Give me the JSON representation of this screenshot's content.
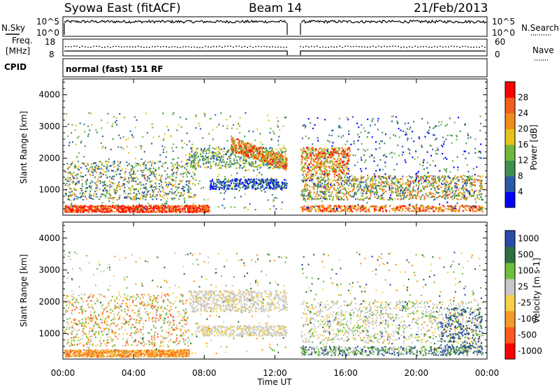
{
  "header": {
    "station": "Syowa East (fitACF)",
    "beam": "Beam 14",
    "date": "21/Feb/2013"
  },
  "top_panel": {
    "left_label": "N.Sky",
    "right_label": "N.Search",
    "scale_top": "10^5",
    "scale_bottom": "10^0"
  },
  "freq_panel": {
    "left_label_1": "Freq.",
    "left_label_2": "[MHz]",
    "left_ticks": [
      "18",
      "8"
    ],
    "right_label": "Nave",
    "right_ticks": [
      "60",
      "0"
    ]
  },
  "cpid": {
    "label": "CPID",
    "text": "normal (fast) 151 RF"
  },
  "colors": {
    "power_scale": [
      "#0000ff",
      "#2a5aa6",
      "#3f8f4f",
      "#6fb83d",
      "#e6c21e",
      "#f08c1b",
      "#f0601b",
      "#ff0000"
    ],
    "velocity_scale": [
      "#ff0000",
      "#ff5a1e",
      "#f39a2a",
      "#f6d049",
      "#c8c8c8",
      "#6fbe3d",
      "#2f6f3f",
      "#2a4aa8"
    ]
  },
  "chart_data": [
    {
      "type": "heatmap",
      "ylabel": "Slant Range [km]",
      "yticks": [
        "1000",
        "2000",
        "3000",
        "4000"
      ],
      "ylim": [
        200,
        4500
      ],
      "colorbar": {
        "label": "Power [dB]",
        "ticks": [
          "4",
          "8",
          "12",
          "16",
          "20",
          "24",
          "28"
        ],
        "range": [
          0,
          30
        ]
      }
    },
    {
      "type": "heatmap",
      "ylabel": "Slant Range [km]",
      "yticks": [
        "1000",
        "2000",
        "3000",
        "4000"
      ],
      "ylim": [
        200,
        4500
      ],
      "xlabel": "Time UT",
      "xticks": [
        "00:00",
        "04:00",
        "08:00",
        "12:00",
        "16:00",
        "20:00",
        "00:00"
      ],
      "colorbar": {
        "label": "Velocity [m s-1]",
        "ticks": [
          "-1000",
          "-500",
          "-100",
          "-25",
          "25",
          "100",
          "500",
          "1000"
        ]
      }
    }
  ]
}
